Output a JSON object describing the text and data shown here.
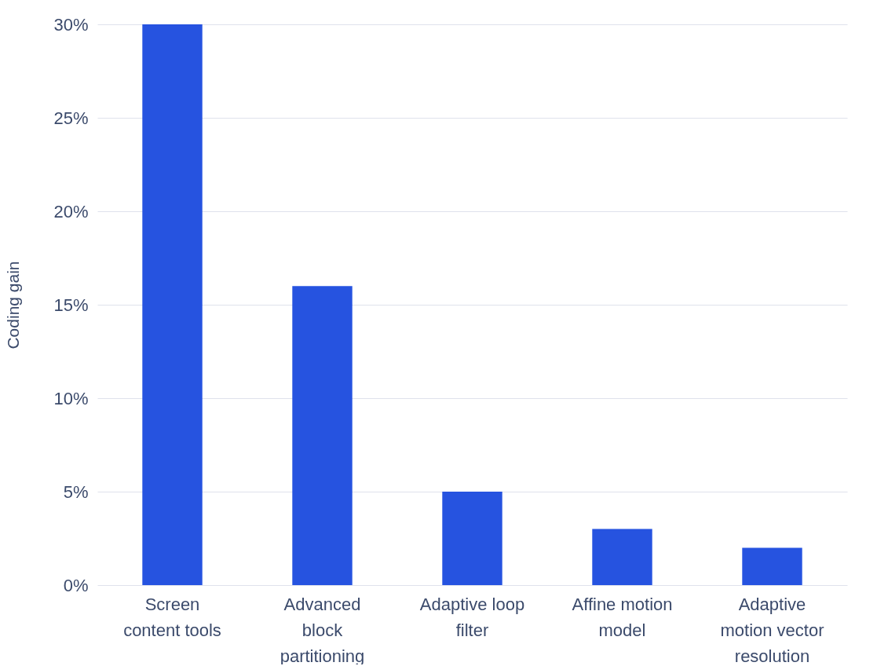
{
  "chart_data": {
    "type": "bar",
    "ylabel": "Coding gain",
    "categories": [
      "Screen content tools",
      "Advanced block partitioning",
      "Adaptive loop filter",
      "Affine motion model",
      "Adaptive motion vector resolution"
    ],
    "values": [
      30,
      16,
      5,
      3,
      2
    ],
    "color": "#2653e0",
    "ylim": [
      0,
      30
    ],
    "yticks": [
      {
        "value": 0,
        "label": "0%"
      },
      {
        "value": 5,
        "label": "5%"
      },
      {
        "value": 10,
        "label": "10%"
      },
      {
        "value": 15,
        "label": "15%"
      },
      {
        "value": 20,
        "label": "20%"
      },
      {
        "value": 25,
        "label": "25%"
      },
      {
        "value": 30,
        "label": "30%"
      }
    ],
    "grid": true
  }
}
